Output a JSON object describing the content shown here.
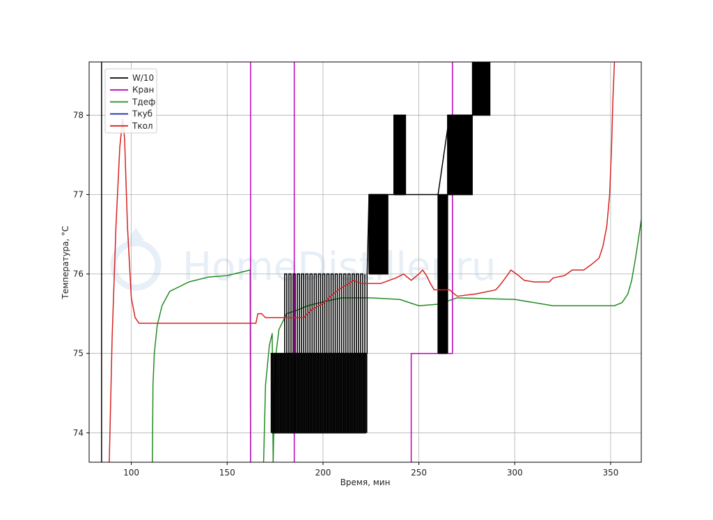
{
  "watermark": {
    "text": "HomeDistiller.ru"
  },
  "chart_data": {
    "type": "line",
    "title": "",
    "xlabel": "Время, мин",
    "ylabel": "Температура, °C",
    "xlim": [
      78,
      366
    ],
    "ylim": [
      73.63,
      78.67
    ],
    "xticks": [
      100,
      150,
      200,
      250,
      300,
      350
    ],
    "yticks": [
      74,
      75,
      76,
      77,
      78
    ],
    "grid": true,
    "legend_position": "top-left",
    "series": [
      {
        "name": "W/10",
        "color": "#000000",
        "segments": [
          [
            [
              84.5,
              73.63
            ],
            [
              84.5,
              78.67
            ]
          ]
        ],
        "square_waves": [
          {
            "x0": 173,
            "x1": 223,
            "low": 74,
            "high": 75,
            "step": 0.6
          },
          {
            "x0": 180,
            "x1": 222,
            "low": 75,
            "high": 76,
            "step": 1.1
          },
          {
            "x0": 224,
            "x1": 234,
            "low": 76,
            "high": 77,
            "step": 0.35
          },
          {
            "x0": 237,
            "x1": 243,
            "low": 77,
            "high": 78,
            "step": 0.4
          },
          {
            "x0": 260,
            "x1": 265,
            "low": 75,
            "high": 77,
            "step": 0.45
          },
          {
            "x0": 265,
            "x1": 278,
            "low": 77,
            "high": 78,
            "step": 0.4
          },
          {
            "x0": 278,
            "x1": 287,
            "low": 78,
            "high": 78.67,
            "step": 0.3
          }
        ],
        "steps": [
          [
            [
              223,
              75
            ],
            [
              223,
              76
            ],
            [
              224,
              77
            ],
            [
              234,
              77
            ],
            [
              260,
              77
            ],
            [
              266,
              78
            ],
            [
              278,
              78
            ],
            [
              278,
              78.67
            ]
          ]
        ]
      },
      {
        "name": "Кран",
        "color": "#bf00bf",
        "segments": [
          [
            [
              162.2,
              73.63
            ],
            [
              162.2,
              78.67
            ]
          ],
          [
            [
              185,
              73.63
            ],
            [
              185,
              78.67
            ]
          ],
          [
            [
              246,
              73.63
            ],
            [
              246,
              75
            ],
            [
              267.5,
              75
            ],
            [
              267.5,
              78.67
            ]
          ]
        ]
      },
      {
        "name": "Тдеф",
        "color": "#228b22",
        "segments": [
          [
            [
              111,
              73.63
            ],
            [
              111.3,
              74.6
            ],
            [
              112,
              75.0
            ],
            [
              113.5,
              75.35
            ],
            [
              116,
              75.6
            ],
            [
              120,
              75.78
            ],
            [
              130,
              75.9
            ],
            [
              140,
              75.96
            ],
            [
              150,
              75.98
            ],
            [
              162,
              76.05
            ],
            [
              162.2,
              73.63
            ]
          ],
          [
            [
              169,
              73.63
            ],
            [
              170,
              74.6
            ],
            [
              172,
              75.1
            ],
            [
              173.5,
              75.25
            ],
            [
              174,
              73.63
            ]
          ],
          [
            [
              174,
              73.63
            ],
            [
              175,
              74.9
            ],
            [
              177,
              75.3
            ],
            [
              181,
              75.5
            ],
            [
              187,
              75.55
            ],
            [
              192,
              75.6
            ],
            [
              200,
              75.65
            ],
            [
              210,
              75.7
            ],
            [
              225,
              75.7
            ],
            [
              240,
              75.68
            ],
            [
              250,
              75.6
            ],
            [
              260,
              75.62
            ],
            [
              270,
              75.7
            ],
            [
              300,
              75.68
            ],
            [
              320,
              75.6
            ],
            [
              350,
              75.6
            ],
            [
              352,
              75.6
            ],
            [
              356,
              75.64
            ],
            [
              359,
              75.75
            ],
            [
              361,
              75.92
            ],
            [
              363,
              76.2
            ],
            [
              366,
              76.68
            ]
          ]
        ]
      },
      {
        "name": "Ткуб",
        "color": "#1f1faf",
        "segments": []
      },
      {
        "name": "Ткол",
        "color": "#d62020",
        "segments": [
          [
            [
              88.5,
              73.63
            ],
            [
              90,
              75.2
            ],
            [
              92,
              76.6
            ],
            [
              94,
              77.6
            ],
            [
              95.5,
              77.95
            ],
            [
              96.5,
              77.7
            ],
            [
              98,
              76.6
            ],
            [
              100,
              75.7
            ],
            [
              102,
              75.45
            ],
            [
              104,
              75.38
            ],
            [
              120,
              75.38
            ],
            [
              150,
              75.38
            ],
            [
              165,
              75.38
            ],
            [
              166,
              75.5
            ],
            [
              168,
              75.5
            ],
            [
              170,
              75.45
            ],
            [
              190,
              75.45
            ],
            [
              194,
              75.55
            ],
            [
              200,
              75.63
            ],
            [
              204,
              75.72
            ],
            [
              208,
              75.8
            ],
            [
              212,
              75.86
            ],
            [
              216,
              75.92
            ],
            [
              220,
              75.88
            ],
            [
              230,
              75.88
            ],
            [
              238,
              75.95
            ],
            [
              242,
              76.0
            ],
            [
              246,
              75.92
            ],
            [
              250,
              76.0
            ],
            [
              252,
              76.05
            ],
            [
              254,
              75.98
            ],
            [
              256,
              75.88
            ],
            [
              258,
              75.8
            ],
            [
              266,
              75.8
            ],
            [
              270,
              75.72
            ],
            [
              280,
              75.75
            ],
            [
              290,
              75.8
            ],
            [
              292,
              75.85
            ],
            [
              296,
              75.98
            ],
            [
              298,
              76.05
            ],
            [
              302,
              75.98
            ],
            [
              305,
              75.92
            ],
            [
              310,
              75.9
            ],
            [
              318,
              75.9
            ],
            [
              320,
              75.95
            ],
            [
              326,
              75.98
            ],
            [
              330,
              76.05
            ],
            [
              336,
              76.05
            ],
            [
              340,
              76.12
            ],
            [
              344,
              76.2
            ],
            [
              346,
              76.35
            ],
            [
              348,
              76.6
            ],
            [
              349.5,
              77.0
            ],
            [
              350.5,
              77.6
            ],
            [
              351.2,
              78.2
            ],
            [
              352,
              78.67
            ]
          ]
        ]
      }
    ]
  }
}
